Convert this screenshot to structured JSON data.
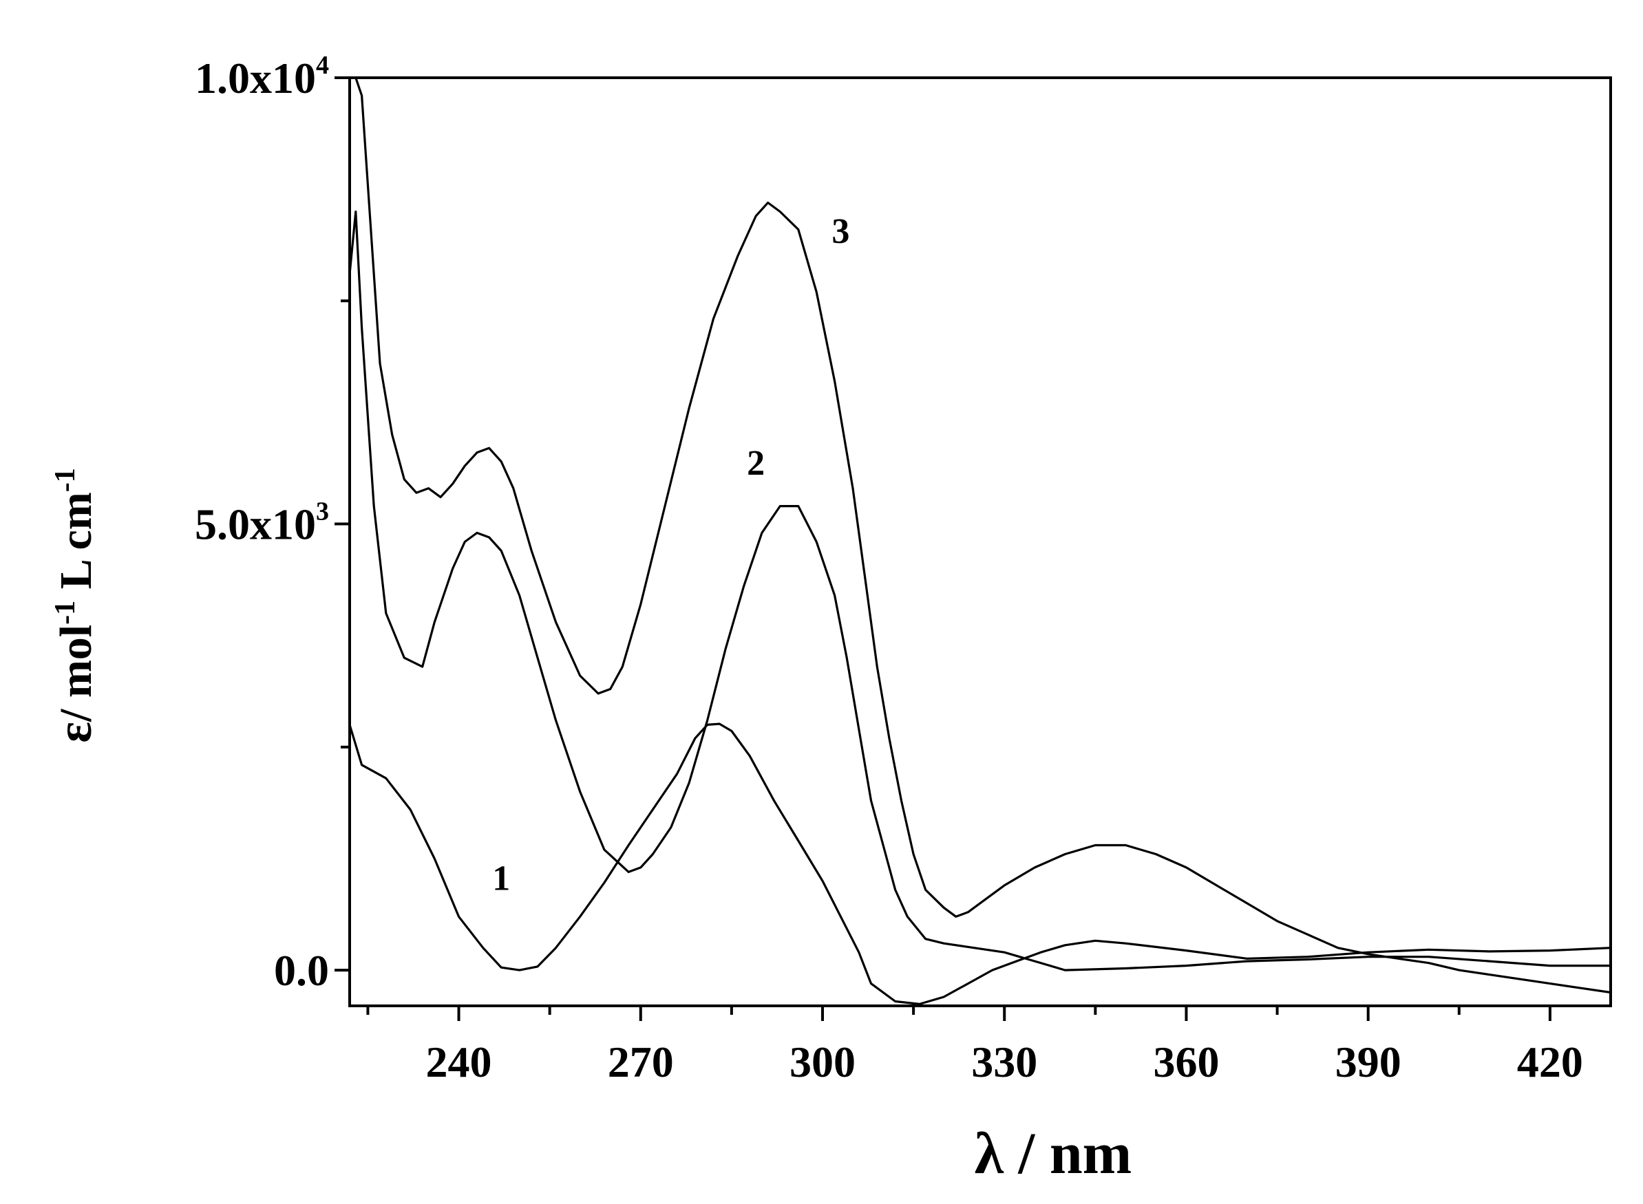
{
  "chart_data": {
    "type": "line",
    "xlabel": "λ / nm",
    "ylabel": "ε / mol-1 L cm-1",
    "ylabel_parts": {
      "eps": "ε",
      "mol": "/ mol",
      "mol_exp": "-1",
      "l_cm": " L cm",
      "cm_exp": "-1"
    },
    "xlim": [
      222,
      430
    ],
    "ylim": [
      -400,
      10000
    ],
    "x_ticks": [
      240,
      270,
      300,
      330,
      360,
      390,
      420
    ],
    "x_tick_labels": [
      "240",
      "270",
      "300",
      "330",
      "360",
      "390",
      "420"
    ],
    "x_minor_ticks": [
      225,
      255,
      285,
      315,
      345,
      375,
      405
    ],
    "y_ticks": [
      0,
      5000,
      10000
    ],
    "y_tick_labels": [
      {
        "mantissa": "0.0",
        "exp": ""
      },
      {
        "mantissa": "5.0x10",
        "exp": "3"
      },
      {
        "mantissa": "1.0x10",
        "exp": "4"
      }
    ],
    "y_minor_ticks": [
      2500,
      7500
    ],
    "grid": false,
    "legend": "none",
    "series": [
      {
        "name": "1",
        "label_at": [
          247,
          900
        ],
        "x": [
          222,
          224,
          228,
          232,
          236,
          240,
          244,
          247,
          250,
          253,
          256,
          260,
          264,
          268,
          272,
          276,
          279,
          281,
          283,
          285,
          288,
          292,
          296,
          300,
          303,
          306,
          308,
          312,
          316,
          320,
          324,
          328,
          332,
          336,
          340,
          345,
          350,
          360,
          370,
          380,
          390,
          400,
          410,
          420,
          430
        ],
        "y": [
          2750,
          2300,
          2150,
          1800,
          1250,
          600,
          250,
          30,
          0,
          40,
          250,
          600,
          980,
          1400,
          1800,
          2200,
          2600,
          2750,
          2760,
          2680,
          2400,
          1900,
          1450,
          1000,
          600,
          200,
          -150,
          -350,
          -380,
          -300,
          -150,
          0,
          100,
          200,
          280,
          330,
          300,
          220,
          130,
          150,
          200,
          230,
          210,
          220,
          250
        ]
      },
      {
        "name": "2",
        "label_at": [
          289,
          5550
        ],
        "x": [
          222,
          223,
          224,
          226,
          228,
          231,
          234,
          236,
          239,
          241,
          243,
          245,
          247,
          250,
          253,
          256,
          260,
          264,
          268,
          270,
          272,
          275,
          278,
          281,
          284,
          287,
          290,
          293,
          296,
          299,
          302,
          304,
          306,
          308,
          310,
          312,
          314,
          317,
          320,
          325,
          330,
          335,
          340,
          350,
          360,
          370,
          380,
          390,
          400,
          410,
          420,
          430
        ],
        "y": [
          7800,
          8500,
          7200,
          5200,
          4000,
          3500,
          3400,
          3900,
          4500,
          4800,
          4900,
          4850,
          4700,
          4200,
          3500,
          2800,
          2000,
          1350,
          1100,
          1150,
          1300,
          1600,
          2100,
          2800,
          3600,
          4300,
          4900,
          5200,
          5200,
          4800,
          4200,
          3500,
          2700,
          1900,
          1400,
          900,
          600,
          350,
          300,
          250,
          200,
          100,
          0,
          20,
          50,
          100,
          120,
          150,
          150,
          100,
          50,
          50
        ]
      },
      {
        "name": "3",
        "label_at": [
          303,
          8150
        ],
        "x": [
          223,
          224,
          225,
          227,
          229,
          231,
          233,
          235,
          237,
          239,
          241,
          243,
          245,
          247,
          249,
          252,
          256,
          260,
          263,
          265,
          267,
          270,
          274,
          278,
          282,
          286,
          289,
          291,
          293,
          296,
          299,
          302,
          305,
          307,
          309,
          311,
          313,
          315,
          317,
          320,
          322,
          324,
          326,
          330,
          335,
          340,
          345,
          350,
          355,
          360,
          365,
          370,
          375,
          380,
          385,
          390,
          395,
          400,
          405,
          410,
          415,
          420,
          425,
          430
        ],
        "y": [
          10000,
          9800,
          8800,
          6800,
          6000,
          5500,
          5350,
          5400,
          5300,
          5450,
          5650,
          5800,
          5850,
          5700,
          5400,
          4700,
          3900,
          3300,
          3100,
          3150,
          3400,
          4100,
          5200,
          6300,
          7300,
          8000,
          8450,
          8600,
          8500,
          8300,
          7600,
          6600,
          5400,
          4400,
          3400,
          2600,
          1900,
          1300,
          900,
          700,
          600,
          650,
          750,
          950,
          1150,
          1300,
          1400,
          1400,
          1300,
          1150,
          950,
          750,
          550,
          400,
          250,
          180,
          130,
          80,
          0,
          -50,
          -100,
          -150,
          -200,
          -250
        ]
      }
    ]
  }
}
